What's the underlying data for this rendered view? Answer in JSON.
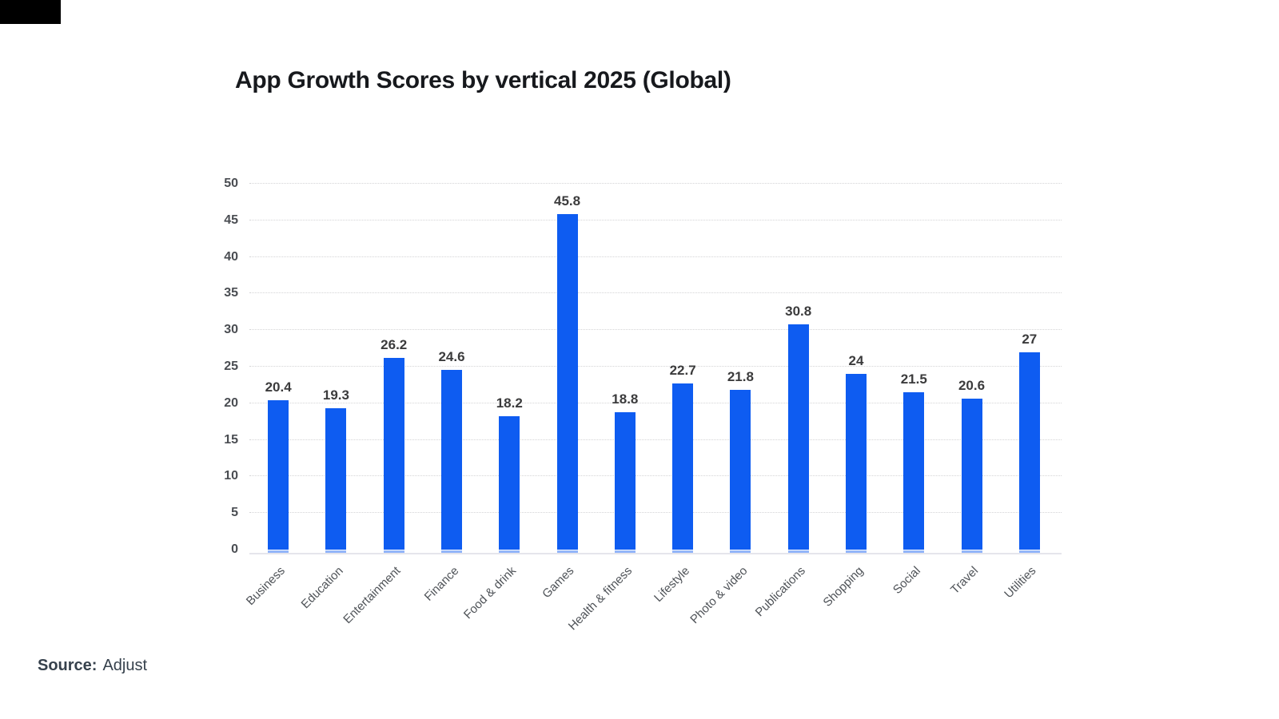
{
  "chart_data": {
    "type": "bar",
    "title": "App Growth Scores by vertical 2025 (Global)",
    "categories": [
      "Business",
      "Education",
      "Entertainment",
      "Finance",
      "Food & drink",
      "Games",
      "Health & fitness",
      "Lifestyle",
      "Photo & video",
      "Publications",
      "Shopping",
      "Social",
      "Travel",
      "Utilities"
    ],
    "values": [
      20.4,
      19.3,
      26.2,
      24.6,
      18.2,
      45.8,
      18.8,
      22.7,
      21.8,
      30.8,
      24,
      21.5,
      20.6,
      27
    ],
    "value_labels": [
      "20.4",
      "19.3",
      "26.2",
      "24.6",
      "18.2",
      "45.8",
      "18.8",
      "22.7",
      "21.8",
      "30.8",
      "24",
      "21.5",
      "20.6",
      "27"
    ],
    "xlabel": "",
    "ylabel": "",
    "ylim": [
      0,
      50
    ],
    "yticks": [
      0,
      5,
      10,
      15,
      20,
      25,
      30,
      35,
      40,
      45,
      50
    ],
    "grid": true,
    "legend": false,
    "bar_color": "#0e5cf1",
    "bar_base_color": "rgba(14,92,241,0.45)",
    "gridline_color": "#d4d4d6"
  },
  "source": {
    "label": "Source:",
    "value": "Adjust"
  }
}
